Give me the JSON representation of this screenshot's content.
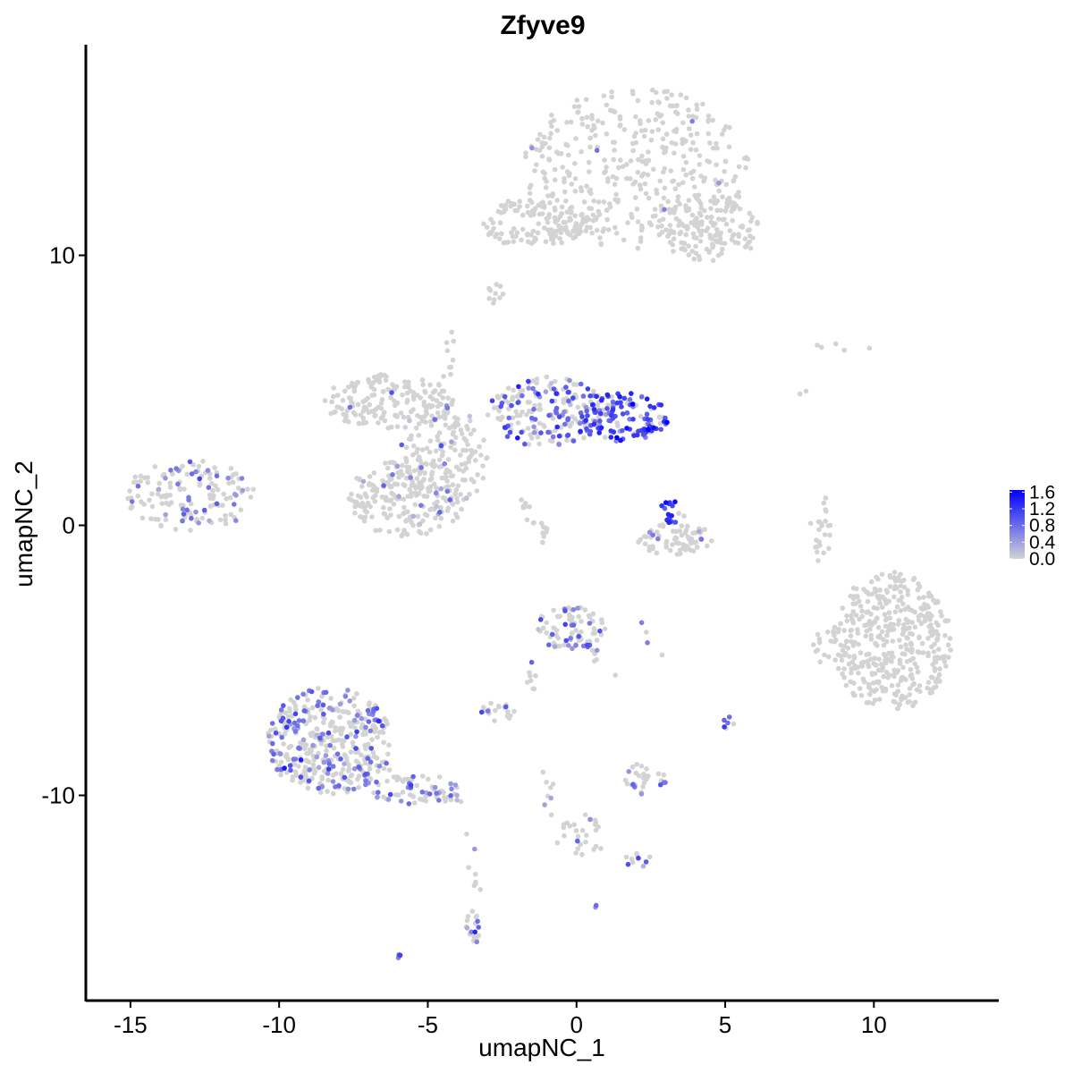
{
  "chart_data": {
    "type": "scatter",
    "title": "Zfyve9",
    "xlabel": "umapNC_1",
    "ylabel": "umapNC_2",
    "xlim": [
      -16.5,
      14.2
    ],
    "ylim": [
      -17.6,
      17.8
    ],
    "x_ticks": [
      -15,
      -10,
      -5,
      0,
      5,
      10
    ],
    "x_tick_labels": [
      "-15",
      "-10",
      "-5",
      "0",
      "5",
      "10"
    ],
    "y_ticks": [
      -10,
      0,
      10
    ],
    "y_tick_labels": [
      "-10",
      "0",
      "10"
    ],
    "grid": false,
    "legend_position": "right",
    "colors": {
      "low": "#d3d3d3",
      "high": "#0000ff"
    },
    "color_scale": {
      "min": 0.0,
      "max": 1.65,
      "breaks": [
        0.0,
        0.4,
        0.8,
        1.2,
        1.6
      ],
      "labels": [
        "0.0",
        "0.4",
        "0.8",
        "1.2",
        "1.6"
      ]
    },
    "clusters": [
      {
        "cx": 2.0,
        "cy": 13.2,
        "rx": 3.8,
        "ry": 3.0,
        "n": 380,
        "hi": 0.01,
        "lvl": 0.5
      },
      {
        "cx": -1.5,
        "cy": 11.2,
        "rx": 1.8,
        "ry": 0.9,
        "n": 120,
        "hi": 0.01,
        "lvl": 0.5
      },
      {
        "cx": 4.5,
        "cy": 11.0,
        "rx": 1.8,
        "ry": 1.2,
        "n": 140,
        "hi": 0.01,
        "lvl": 0.5
      },
      {
        "cx": -2.7,
        "cy": 8.6,
        "rx": 0.3,
        "ry": 0.6,
        "n": 10,
        "hi": 0.0,
        "lvl": 0.0
      },
      {
        "cx": -6.3,
        "cy": 4.6,
        "rx": 2.2,
        "ry": 1.0,
        "n": 160,
        "hi": 0.02,
        "lvl": 0.6
      },
      {
        "cx": -4.5,
        "cy": 2.5,
        "rx": 1.5,
        "ry": 2.0,
        "n": 150,
        "hi": 0.1,
        "lvl": 0.55
      },
      {
        "cx": -5.7,
        "cy": 1.0,
        "rx": 2.0,
        "ry": 1.4,
        "n": 200,
        "hi": 0.06,
        "lvl": 0.5
      },
      {
        "cx": -1.0,
        "cy": 4.2,
        "rx": 2.0,
        "ry": 1.3,
        "n": 190,
        "hi": 0.45,
        "lvl": 0.8
      },
      {
        "cx": 1.6,
        "cy": 4.0,
        "rx": 1.5,
        "ry": 0.9,
        "n": 130,
        "hi": 0.7,
        "lvl": 1.1
      },
      {
        "cx": -13.0,
        "cy": 1.1,
        "rx": 2.2,
        "ry": 1.3,
        "n": 150,
        "hi": 0.25,
        "lvl": 0.65
      },
      {
        "cx": 3.3,
        "cy": -0.5,
        "rx": 1.3,
        "ry": 0.6,
        "n": 70,
        "hi": 0.05,
        "lvl": 0.5
      },
      {
        "cx": 3.2,
        "cy": 0.5,
        "rx": 0.45,
        "ry": 0.45,
        "n": 18,
        "hi": 0.8,
        "lvl": 1.3
      },
      {
        "cx": 10.6,
        "cy": -4.3,
        "rx": 2.0,
        "ry": 2.6,
        "n": 420,
        "hi": 0.0,
        "lvl": 0.0
      },
      {
        "cx": 8.3,
        "cy": -4.5,
        "rx": 0.4,
        "ry": 0.6,
        "n": 12,
        "hi": 0.0,
        "lvl": 0.0
      },
      {
        "cx": 8.2,
        "cy": -0.3,
        "rx": 0.4,
        "ry": 0.8,
        "n": 14,
        "hi": 0.0,
        "lvl": 0.0
      },
      {
        "cx": -8.3,
        "cy": -8.0,
        "rx": 2.1,
        "ry": 2.0,
        "n": 420,
        "hi": 0.32,
        "lvl": 0.7
      },
      {
        "cx": -5.5,
        "cy": -9.8,
        "rx": 1.6,
        "ry": 0.6,
        "n": 50,
        "hi": 0.3,
        "lvl": 0.7
      },
      {
        "cx": -0.2,
        "cy": -3.8,
        "rx": 1.2,
        "ry": 0.8,
        "n": 75,
        "hi": 0.2,
        "lvl": 0.7
      },
      {
        "cx": -2.6,
        "cy": -6.9,
        "rx": 0.6,
        "ry": 0.4,
        "n": 20,
        "hi": 0.35,
        "lvl": 0.75
      },
      {
        "cx": -1.5,
        "cy": -5.6,
        "rx": 0.3,
        "ry": 0.6,
        "n": 8,
        "hi": 0.4,
        "lvl": 0.8
      },
      {
        "cx": 2.3,
        "cy": -9.4,
        "rx": 0.7,
        "ry": 0.6,
        "n": 30,
        "hi": 0.2,
        "lvl": 0.7
      },
      {
        "cx": 5.1,
        "cy": -7.3,
        "rx": 0.2,
        "ry": 0.25,
        "n": 6,
        "hi": 0.8,
        "lvl": 0.9
      },
      {
        "cx": 0.2,
        "cy": -11.5,
        "rx": 0.9,
        "ry": 0.8,
        "n": 28,
        "hi": 0.15,
        "lvl": 0.65
      },
      {
        "cx": 2.1,
        "cy": -12.4,
        "rx": 0.5,
        "ry": 0.3,
        "n": 10,
        "hi": 0.3,
        "lvl": 0.7
      },
      {
        "cx": -3.5,
        "cy": -14.8,
        "rx": 0.25,
        "ry": 0.8,
        "n": 18,
        "hi": 0.5,
        "lvl": 0.8
      },
      {
        "cx": -6.0,
        "cy": -16.0,
        "rx": 0.12,
        "ry": 0.1,
        "n": 3,
        "hi": 1.0,
        "lvl": 0.8
      },
      {
        "cx": 0.6,
        "cy": -14.1,
        "rx": 0.08,
        "ry": 0.08,
        "n": 2,
        "hi": 1.0,
        "lvl": 0.6
      },
      {
        "cx": 8.9,
        "cy": 6.6,
        "rx": 1.0,
        "ry": 0.25,
        "n": 5,
        "hi": 0.0,
        "lvl": 0.0
      },
      {
        "cx": 7.6,
        "cy": 4.8,
        "rx": 0.3,
        "ry": 0.3,
        "n": 2,
        "hi": 0.0,
        "lvl": 0.0
      }
    ],
    "trails": [
      {
        "x1": -2.0,
        "y1": 1.0,
        "x2": -1.0,
        "y2": -0.5,
        "n": 20,
        "hi": 0.0,
        "lvl": 0.0
      },
      {
        "x1": -4.5,
        "y1": 3.0,
        "x2": -4.2,
        "y2": 7.0,
        "n": 18,
        "hi": 0.0,
        "lvl": 0.0
      },
      {
        "x1": -1.0,
        "y1": 11.0,
        "x2": 1.0,
        "y2": 11.0,
        "n": 14,
        "hi": 0.0,
        "lvl": 0.0
      },
      {
        "x1": -6.5,
        "y1": -9.0,
        "x2": -3.9,
        "y2": -10.2,
        "n": 25,
        "hi": 0.3,
        "lvl": 0.7
      },
      {
        "x1": 0.0,
        "y1": -4.0,
        "x2": 1.3,
        "y2": -5.5,
        "n": 14,
        "hi": 0.3,
        "lvl": 0.8
      },
      {
        "x1": -3.2,
        "y1": -13.7,
        "x2": -3.7,
        "y2": -11.5,
        "n": 8,
        "hi": 0.1,
        "lvl": 0.6
      },
      {
        "x1": -1.0,
        "y1": -9.0,
        "x2": -0.8,
        "y2": -11.0,
        "n": 8,
        "hi": 0.2,
        "lvl": 0.6
      },
      {
        "x1": 2.0,
        "y1": -3.5,
        "x2": 2.8,
        "y2": -5.0,
        "n": 4,
        "hi": 0.2,
        "lvl": 0.7
      },
      {
        "x1": 8.0,
        "y1": -1.5,
        "x2": 8.4,
        "y2": 1.2,
        "n": 10,
        "hi": 0.0,
        "lvl": 0.0
      }
    ]
  }
}
